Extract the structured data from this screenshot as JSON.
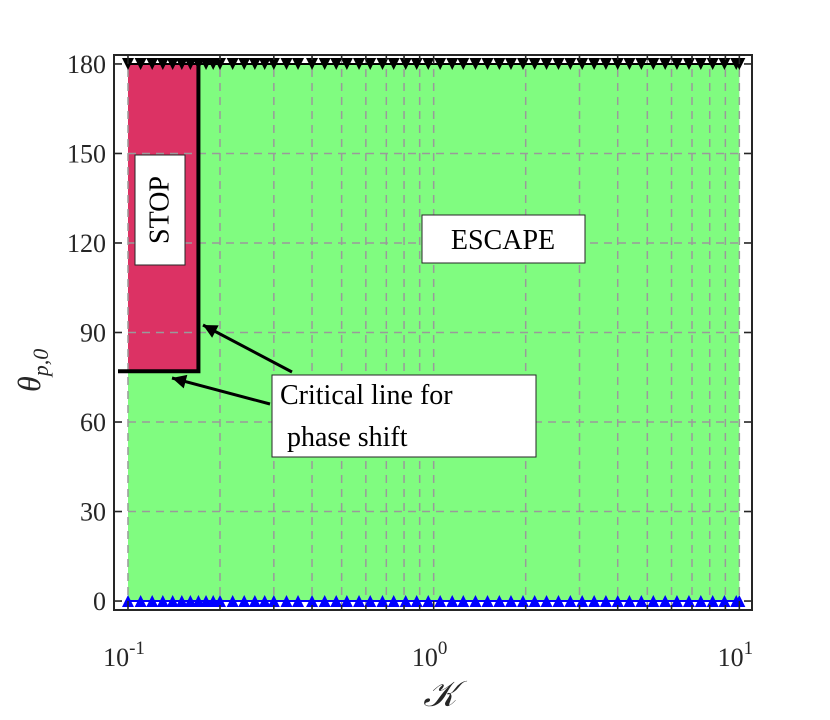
{
  "chart_data": {
    "type": "heatmap",
    "xlabel": "𝒦",
    "ylabel": "θ",
    "ylabel_sub": "p,0",
    "xscale": "log",
    "xlim": [
      0.09,
      11
    ],
    "ylim": [
      -3,
      183
    ],
    "grid": true,
    "x_ticks": [
      {
        "value": 0.1,
        "base": "10",
        "exp": "-1"
      },
      {
        "value": 1,
        "base": "10",
        "exp": "0"
      },
      {
        "value": 10,
        "base": "10",
        "exp": "1"
      }
    ],
    "y_ticks": [
      0,
      30,
      60,
      90,
      120,
      150,
      180
    ],
    "regions": [
      {
        "name": "ESCAPE",
        "color": "#80fc80",
        "x_range": [
          0.1,
          10
        ],
        "y_range": [
          0,
          180
        ]
      },
      {
        "name": "STOP",
        "color": "#dc3264",
        "x_range": [
          0.1,
          0.17
        ],
        "y_range": [
          77,
          180
        ]
      }
    ],
    "critical_line": {
      "x_boundary": 0.17,
      "y_boundary": 77,
      "label": [
        "Critical line for",
        " phase shift"
      ]
    },
    "boundary_markers": [
      {
        "position": "top",
        "y": 180,
        "color": "#000000",
        "shape": "triangle-down"
      },
      {
        "position": "bottom",
        "y": 0,
        "color": "#0000ff",
        "shape": "triangle-up"
      }
    ],
    "marker_x": [
      0.1,
      0.11,
      0.12,
      0.13,
      0.14,
      0.15,
      0.16,
      0.17,
      0.18,
      0.19,
      0.2,
      0.22,
      0.24,
      0.26,
      0.28,
      0.3,
      0.33,
      0.36,
      0.4,
      0.44,
      0.48,
      0.52,
      0.57,
      0.62,
      0.68,
      0.74,
      0.81,
      0.88,
      0.96,
      1.05,
      1.15,
      1.25,
      1.37,
      1.5,
      1.64,
      1.79,
      1.96,
      2.14,
      2.34,
      2.56,
      2.8,
      3.06,
      3.35,
      3.66,
      4.0,
      4.37,
      4.78,
      5.23,
      5.72,
      6.25,
      6.84,
      7.48,
      8.18,
      8.94,
      9.77,
      10
    ]
  },
  "labels": {
    "stop": "STOP",
    "escape": "ESCAPE"
  },
  "colors": {
    "escape_fill": "#80fc80",
    "stop_fill": "#dc3264",
    "grid": "#9a9a9a",
    "axis": "#262626"
  }
}
